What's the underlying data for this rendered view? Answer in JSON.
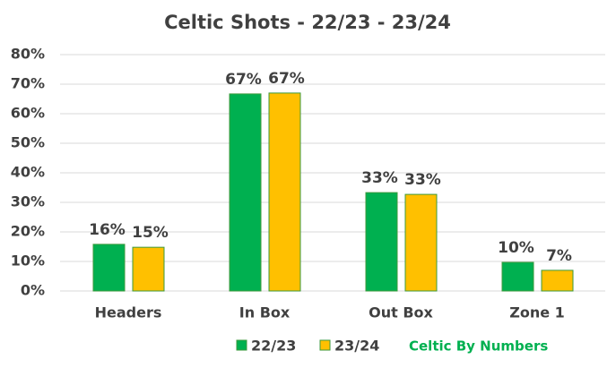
{
  "chart_data": {
    "type": "bar",
    "title": "Celtic Shots - 22/23 - 23/24",
    "categories": [
      "Headers",
      "In Box",
      "Out Box",
      "Zone 1"
    ],
    "series": [
      {
        "name": "22/23",
        "color": "#00b050",
        "values": [
          15.8,
          66.7,
          33.3,
          9.7
        ],
        "value_labels": [
          "16%",
          "67%",
          "33%",
          "10%"
        ]
      },
      {
        "name": "23/24",
        "color": "#ffc000",
        "values": [
          14.8,
          67.0,
          32.7,
          7.0
        ],
        "value_labels": [
          "15%",
          "67%",
          "33%",
          "7%"
        ]
      }
    ],
    "ylim": [
      0,
      80
    ],
    "yticks": [
      {
        "value": 0,
        "label": "0%"
      },
      {
        "value": 10,
        "label": "10%"
      },
      {
        "value": 20,
        "label": "20%"
      },
      {
        "value": 30,
        "label": "30%"
      },
      {
        "value": 40,
        "label": "40%"
      },
      {
        "value": 50,
        "label": "50%"
      },
      {
        "value": 60,
        "label": "60%"
      },
      {
        "value": 70,
        "label": "70%"
      },
      {
        "value": 80,
        "label": "80%"
      }
    ],
    "grid": true,
    "legend": "bottom",
    "annotation": "Celtic By Numbers"
  }
}
